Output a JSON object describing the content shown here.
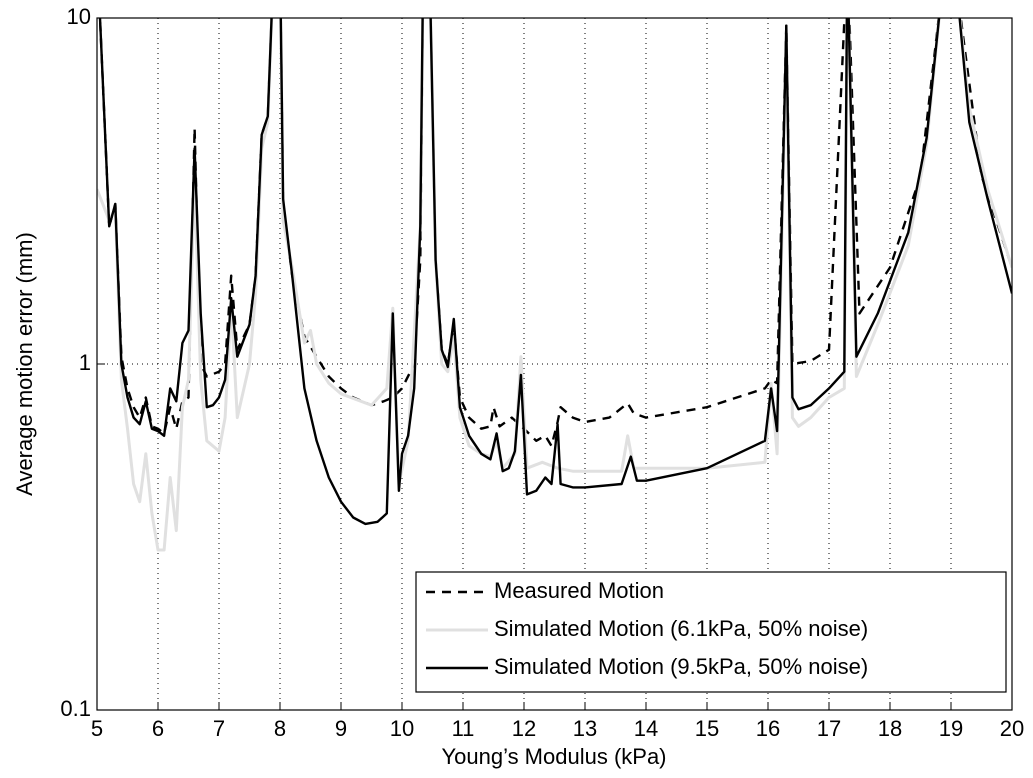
{
  "chart_data": {
    "type": "line",
    "x_label": "Young’s Modulus (kPa)",
    "y_label": "Average motion error (mm)",
    "yscale": "log",
    "grid": true,
    "legend_position": "lower right",
    "xlim": [
      5,
      20
    ],
    "xticks": [
      5,
      6,
      7,
      8,
      9,
      10,
      11,
      12,
      13,
      14,
      15,
      16,
      17,
      18,
      19,
      20
    ],
    "ylim": [
      0.1,
      10
    ],
    "yticks": [
      0.1,
      1,
      10
    ],
    "series": [
      {
        "name": "Measured Motion",
        "color": "#000000",
        "dash": "dashed",
        "x": [
          5.0,
          5.05,
          5.2,
          5.3,
          5.4,
          5.5,
          5.6,
          5.7,
          5.8,
          5.9,
          6.0,
          6.1,
          6.2,
          6.3,
          6.4,
          6.5,
          6.6,
          6.7,
          6.8,
          7.0,
          7.1,
          7.2,
          7.3,
          7.5,
          7.6,
          7.7,
          7.8,
          7.9,
          8.0,
          8.05,
          8.2,
          8.4,
          8.6,
          8.8,
          9.0,
          9.2,
          9.5,
          9.7,
          9.85,
          10.0,
          10.2,
          10.3,
          10.35,
          10.45,
          10.55,
          10.65,
          10.75,
          10.85,
          10.95,
          11.1,
          11.3,
          11.45,
          11.5,
          11.6,
          11.8,
          12.0,
          12.2,
          12.35,
          12.45,
          12.55,
          12.6,
          12.8,
          13.0,
          13.4,
          13.7,
          13.8,
          14.0,
          15.0,
          15.95,
          16.05,
          16.15,
          16.3,
          16.4,
          16.7,
          17.0,
          17.3,
          17.5,
          18.0,
          18.5,
          18.85,
          19.1,
          19.5,
          20.0
        ],
        "values": [
          12,
          10,
          2.5,
          2.9,
          1.05,
          0.85,
          0.75,
          0.7,
          0.8,
          0.66,
          0.65,
          0.63,
          0.75,
          0.65,
          0.78,
          0.8,
          4.8,
          1.0,
          0.92,
          0.95,
          1.0,
          1.8,
          1.1,
          1.3,
          1.8,
          4.6,
          5.2,
          15,
          15,
          2.9,
          1.8,
          1.2,
          1.05,
          0.92,
          0.85,
          0.8,
          0.76,
          0.78,
          0.8,
          0.85,
          1.0,
          2.0,
          15,
          15,
          2.0,
          1.1,
          1.0,
          1.3,
          0.8,
          0.7,
          0.65,
          0.66,
          0.75,
          0.66,
          0.7,
          0.65,
          0.6,
          0.62,
          0.58,
          0.68,
          0.75,
          0.7,
          0.68,
          0.7,
          0.77,
          0.72,
          0.7,
          0.75,
          0.85,
          0.9,
          0.88,
          9.5,
          1.0,
          1.02,
          1.1,
          15,
          1.4,
          1.9,
          3.5,
          12,
          12,
          3.5,
          1.9
        ]
      },
      {
        "name": "Simulated Motion (6.1kPa, 50% noise)",
        "color": "#e0e0e0",
        "dash": "solid",
        "x": [
          5.0,
          5.2,
          5.3,
          5.4,
          5.5,
          5.6,
          5.7,
          5.8,
          5.9,
          6.0,
          6.1,
          6.2,
          6.3,
          6.4,
          6.5,
          6.6,
          6.7,
          6.8,
          7.0,
          7.1,
          7.2,
          7.3,
          7.5,
          7.6,
          7.7,
          7.8,
          7.9,
          8.0,
          8.05,
          8.2,
          8.4,
          8.5,
          8.6,
          8.8,
          9.0,
          9.5,
          9.75,
          9.85,
          9.95,
          10.1,
          10.3,
          10.35,
          10.45,
          10.55,
          10.65,
          10.75,
          10.85,
          10.95,
          11.1,
          11.3,
          11.45,
          11.55,
          11.65,
          11.85,
          11.95,
          12.05,
          12.3,
          12.55,
          12.8,
          13.0,
          13.6,
          13.7,
          13.8,
          14.0,
          15.0,
          15.95,
          16.05,
          16.15,
          16.3,
          16.4,
          16.5,
          16.7,
          17.0,
          17.25,
          17.3,
          17.45,
          17.8,
          18.3,
          18.6,
          18.85,
          19.1,
          19.3,
          19.6,
          20.0
        ],
        "values": [
          3.2,
          2.6,
          2.8,
          0.9,
          0.65,
          0.45,
          0.4,
          0.55,
          0.37,
          0.29,
          0.29,
          0.47,
          0.33,
          0.75,
          0.9,
          3.5,
          0.9,
          0.6,
          0.56,
          0.7,
          1.5,
          0.7,
          1.0,
          1.6,
          4.2,
          5.0,
          15,
          15,
          2.6,
          1.9,
          1.15,
          1.25,
          1.0,
          0.88,
          0.82,
          0.76,
          0.85,
          1.45,
          0.45,
          0.6,
          2.5,
          15,
          15,
          2.0,
          1.0,
          0.95,
          1.2,
          0.7,
          0.58,
          0.55,
          0.54,
          0.6,
          0.5,
          0.55,
          1.05,
          0.5,
          0.52,
          0.5,
          0.49,
          0.49,
          0.49,
          0.62,
          0.5,
          0.5,
          0.5,
          0.52,
          0.88,
          0.55,
          8.5,
          0.7,
          0.66,
          0.7,
          0.8,
          0.85,
          15,
          0.92,
          1.3,
          2.2,
          4.3,
          12,
          12,
          5.5,
          3.2,
          1.9
        ]
      },
      {
        "name": "Simulated Motion (9.5kPa, 50% noise)",
        "color": "#000000",
        "dash": "solid",
        "x": [
          5.0,
          5.05,
          5.2,
          5.3,
          5.4,
          5.5,
          5.6,
          5.7,
          5.8,
          5.9,
          6.0,
          6.1,
          6.2,
          6.3,
          6.4,
          6.5,
          6.6,
          6.7,
          6.8,
          6.9,
          7.0,
          7.1,
          7.2,
          7.3,
          7.5,
          7.6,
          7.7,
          7.8,
          7.9,
          8.0,
          8.05,
          8.2,
          8.4,
          8.6,
          8.8,
          9.0,
          9.2,
          9.4,
          9.6,
          9.75,
          9.85,
          9.95,
          10.0,
          10.1,
          10.2,
          10.3,
          10.35,
          10.45,
          10.55,
          10.65,
          10.75,
          10.85,
          10.95,
          11.1,
          11.3,
          11.45,
          11.55,
          11.65,
          11.75,
          11.85,
          11.95,
          12.05,
          12.2,
          12.35,
          12.45,
          12.55,
          12.6,
          12.8,
          13.0,
          13.6,
          13.75,
          13.85,
          14.0,
          15.0,
          15.95,
          16.05,
          16.15,
          16.3,
          16.4,
          16.5,
          16.7,
          17.0,
          17.25,
          17.3,
          17.45,
          17.8,
          18.3,
          18.6,
          18.85,
          19.1,
          19.3,
          19.6,
          20.0
        ],
        "values": [
          12,
          10,
          2.5,
          2.9,
          1.0,
          0.8,
          0.7,
          0.67,
          0.78,
          0.65,
          0.64,
          0.62,
          0.85,
          0.78,
          1.15,
          1.25,
          4.2,
          1.4,
          0.75,
          0.76,
          0.8,
          0.9,
          1.55,
          1.05,
          1.3,
          1.8,
          4.6,
          5.2,
          15,
          15,
          3.0,
          1.8,
          0.85,
          0.6,
          0.47,
          0.4,
          0.36,
          0.345,
          0.35,
          0.37,
          1.4,
          0.43,
          0.55,
          0.62,
          0.85,
          2.5,
          15,
          15,
          2.0,
          1.1,
          0.98,
          1.35,
          0.75,
          0.62,
          0.55,
          0.53,
          0.63,
          0.49,
          0.5,
          0.56,
          0.93,
          0.42,
          0.43,
          0.47,
          0.45,
          0.67,
          0.45,
          0.44,
          0.44,
          0.45,
          0.54,
          0.46,
          0.46,
          0.5,
          0.6,
          0.85,
          0.64,
          9.5,
          0.8,
          0.74,
          0.76,
          0.85,
          0.95,
          15,
          1.05,
          1.4,
          2.4,
          4.5,
          12,
          12,
          5.0,
          3.0,
          1.6
        ]
      }
    ]
  }
}
